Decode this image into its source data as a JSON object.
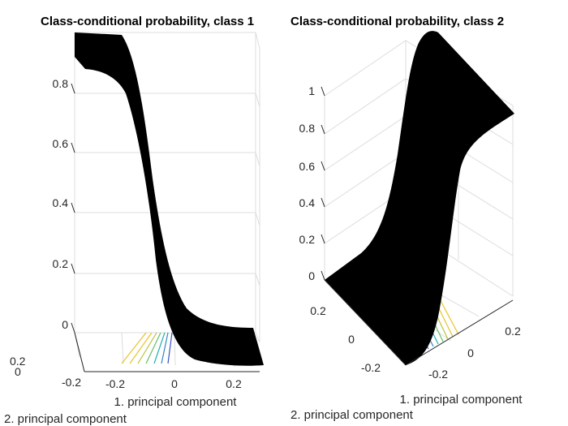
{
  "chart_data": [
    {
      "type": "surface",
      "title": "Class-conditional probability, class 1",
      "xlabel": "1. principal component",
      "ylabel": "2. principal component",
      "zlabel": "",
      "z_ticks": [
        "0",
        "0.2",
        "0.4",
        "0.6",
        "0.8"
      ],
      "x_ticks": [
        "-0.2",
        "0",
        "0.2"
      ],
      "y_ticks": [
        "-0.2",
        "0",
        "0.2"
      ],
      "zlim": [
        0,
        1
      ],
      "surface_fill": "#000000",
      "contour_colors": [
        "#3a52c8",
        "#2f86c8",
        "#22b0b0",
        "#63c06a",
        "#b9c23a",
        "#e7c52a"
      ],
      "shape": "decreasing sigmoid along the first principal component, from 1 to 0",
      "grid": true
    },
    {
      "type": "surface",
      "title": "Class-conditional probability, class 2",
      "xlabel": "1. principal component",
      "ylabel": "2. principal component",
      "zlabel": "",
      "z_ticks": [
        "0",
        "0.2",
        "0.4",
        "0.6",
        "0.8",
        "1"
      ],
      "x_ticks": [
        "-0.2",
        "0",
        "0.2"
      ],
      "y_ticks": [
        "-0.2",
        "0",
        "0.2"
      ],
      "zlim": [
        0,
        1
      ],
      "surface_fill": "#000000",
      "contour_colors": [
        "#3a52c8",
        "#2f86c8",
        "#22b0b0",
        "#63c06a",
        "#b9c23a",
        "#e7c52a"
      ],
      "shape": "increasing sigmoid along the first principal component, from 0 to 1",
      "grid": true
    }
  ]
}
